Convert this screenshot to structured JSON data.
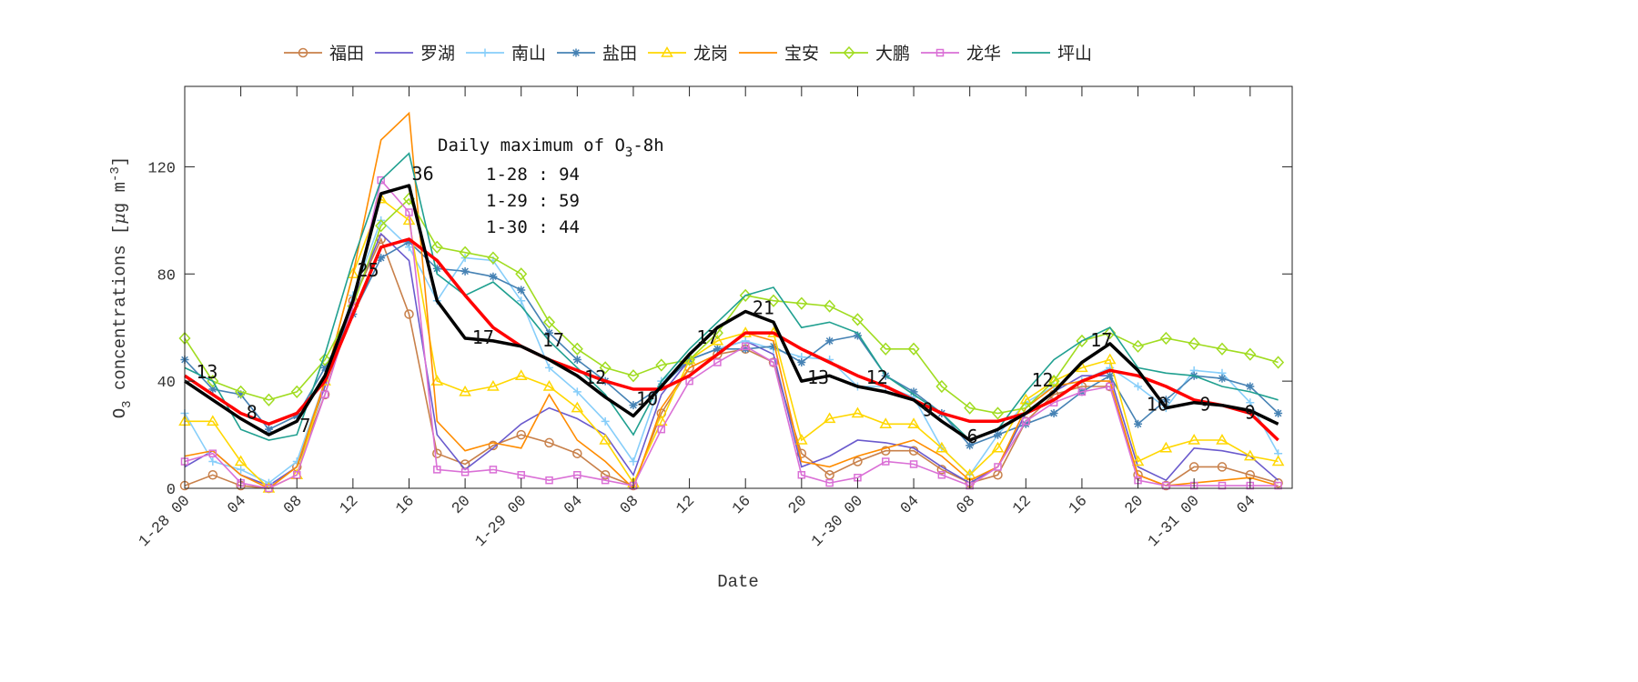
{
  "chart_data": {
    "type": "line",
    "xlabel": "Date",
    "ylabel": "O3 concentrations [μg m-3]",
    "ylabel_parts": {
      "main": "O",
      "sub": "3",
      "rest": " concentrations [",
      "mu": "μ",
      "unit": "g m",
      "sup": "-3",
      "close": "]"
    },
    "ylim": [
      0,
      150
    ],
    "xlim_hours": [
      0,
      79
    ],
    "yticks": [
      0,
      40,
      80,
      120
    ],
    "xticks": [
      {
        "h": 0,
        "label": "1-28 00"
      },
      {
        "h": 4,
        "label": "04"
      },
      {
        "h": 8,
        "label": "08"
      },
      {
        "h": 12,
        "label": "12"
      },
      {
        "h": 16,
        "label": "16"
      },
      {
        "h": 20,
        "label": "20"
      },
      {
        "h": 24,
        "label": "1-29 00"
      },
      {
        "h": 28,
        "label": "04"
      },
      {
        "h": 32,
        "label": "08"
      },
      {
        "h": 36,
        "label": "12"
      },
      {
        "h": 40,
        "label": "16"
      },
      {
        "h": 44,
        "label": "20"
      },
      {
        "h": 48,
        "label": "1-30 00"
      },
      {
        "h": 52,
        "label": "04"
      },
      {
        "h": 56,
        "label": "08"
      },
      {
        "h": 60,
        "label": "12"
      },
      {
        "h": 64,
        "label": "16"
      },
      {
        "h": 68,
        "label": "20"
      },
      {
        "h": 72,
        "label": "1-31 00"
      },
      {
        "h": 76,
        "label": "04"
      }
    ],
    "x_hours": [
      0,
      2,
      4,
      6,
      8,
      10,
      12,
      14,
      16,
      18,
      20,
      22,
      24,
      26,
      28,
      30,
      32,
      34,
      36,
      38,
      40,
      42,
      44,
      46,
      48,
      50,
      52,
      54,
      56,
      58,
      60,
      62,
      64,
      66,
      68,
      70,
      72,
      74,
      76,
      78
    ],
    "legend_position": "top-center",
    "grid": false,
    "series": [
      {
        "name": "福田",
        "color": "#c8804a",
        "marker": "circle",
        "values": [
          1,
          5,
          1,
          0,
          8,
          35,
          70,
          93,
          65,
          13,
          9,
          16,
          20,
          17,
          13,
          5,
          1,
          28,
          45,
          50,
          52,
          47,
          13,
          5,
          10,
          14,
          14,
          7,
          2,
          5,
          25,
          35,
          38,
          38,
          5,
          1,
          8,
          8,
          5,
          2
        ]
      },
      {
        "name": "罗湖",
        "color": "#6a5acd",
        "marker": "none",
        "values": [
          8,
          14,
          5,
          1,
          8,
          38,
          70,
          95,
          85,
          20,
          7,
          15,
          24,
          30,
          26,
          20,
          5,
          35,
          48,
          52,
          55,
          50,
          8,
          12,
          18,
          17,
          15,
          8,
          2,
          8,
          28,
          36,
          42,
          42,
          8,
          3,
          15,
          14,
          12,
          3
        ]
      },
      {
        "name": "南山",
        "color": "#87cefa",
        "marker": "plus",
        "values": [
          28,
          10,
          7,
          2,
          10,
          40,
          72,
          100,
          90,
          70,
          86,
          85,
          70,
          45,
          36,
          25,
          10,
          40,
          48,
          52,
          55,
          52,
          49,
          48,
          38,
          38,
          34,
          15,
          5,
          20,
          32,
          38,
          40,
          45,
          38,
          30,
          44,
          43,
          32,
          13
        ]
      },
      {
        "name": "盐田",
        "color": "#4682b4",
        "marker": "asterisk",
        "values": [
          48,
          37,
          35,
          22,
          27,
          45,
          65,
          86,
          92,
          82,
          81,
          79,
          74,
          58,
          48,
          40,
          31,
          38,
          48,
          52,
          52,
          53,
          47,
          55,
          57,
          42,
          36,
          28,
          16,
          20,
          24,
          28,
          36,
          42,
          24,
          33,
          42,
          41,
          38,
          28
        ]
      },
      {
        "name": "龙岗",
        "color": "#ffd700",
        "marker": "triangle",
        "values": [
          25,
          25,
          10,
          0,
          5,
          40,
          80,
          108,
          100,
          40,
          36,
          38,
          42,
          38,
          30,
          18,
          2,
          25,
          48,
          55,
          58,
          58,
          18,
          26,
          28,
          24,
          24,
          15,
          5,
          15,
          33,
          40,
          45,
          48,
          10,
          15,
          18,
          18,
          12,
          10
        ]
      },
      {
        "name": "宝安",
        "color": "#ff8c00",
        "marker": "none",
        "values": [
          12,
          14,
          5,
          0,
          8,
          40,
          80,
          130,
          140,
          25,
          14,
          17,
          15,
          35,
          18,
          10,
          0,
          30,
          45,
          50,
          58,
          55,
          10,
          8,
          12,
          15,
          18,
          12,
          3,
          8,
          30,
          38,
          40,
          40,
          5,
          1,
          2,
          3,
          4,
          1
        ]
      },
      {
        "name": "大鹏",
        "color": "#a0dc20",
        "marker": "diamond",
        "values": [
          56,
          40,
          36,
          33,
          36,
          48,
          68,
          98,
          108,
          90,
          88,
          86,
          80,
          62,
          52,
          45,
          42,
          46,
          48,
          58,
          72,
          70,
          69,
          68,
          63,
          52,
          52,
          38,
          30,
          28,
          30,
          40,
          55,
          58,
          53,
          56,
          54,
          52,
          50,
          47
        ]
      },
      {
        "name": "龙华",
        "color": "#da70d6",
        "marker": "square",
        "values": [
          10,
          13,
          2,
          0,
          5,
          35,
          68,
          115,
          103,
          7,
          6,
          7,
          5,
          3,
          5,
          3,
          1,
          22,
          40,
          47,
          53,
          47,
          5,
          2,
          4,
          10,
          9,
          5,
          1,
          8,
          25,
          32,
          36,
          38,
          3,
          1,
          1,
          1,
          1,
          1
        ]
      },
      {
        "name": "坪山",
        "color": "#20a090",
        "marker": "none",
        "values": [
          45,
          40,
          22,
          18,
          20,
          50,
          85,
          115,
          125,
          80,
          72,
          77,
          68,
          55,
          45,
          35,
          20,
          40,
          52,
          62,
          72,
          75,
          60,
          62,
          58,
          42,
          35,
          28,
          18,
          22,
          36,
          48,
          55,
          60,
          45,
          43,
          42,
          38,
          36,
          33
        ]
      }
    ],
    "mean_line": {
      "color": "#000000",
      "values": [
        40,
        33,
        26,
        20,
        25,
        42,
        70,
        110,
        113,
        70,
        56,
        55,
        53,
        48,
        42,
        34,
        27,
        38,
        50,
        60,
        66,
        62,
        40,
        42,
        38,
        36,
        33,
        25,
        18,
        22,
        28,
        36,
        47,
        54,
        44,
        30,
        32,
        31,
        29,
        24
      ]
    },
    "smooth_line": {
      "color": "#ff0000",
      "values": [
        42,
        35,
        28,
        24,
        28,
        40,
        65,
        90,
        93,
        85,
        72,
        60,
        53,
        48,
        44,
        40,
        37,
        37,
        42,
        50,
        58,
        58,
        52,
        47,
        42,
        38,
        33,
        28,
        25,
        25,
        28,
        33,
        40,
        44,
        42,
        38,
        33,
        31,
        28,
        18
      ]
    },
    "point_labels": [
      {
        "h": 0.8,
        "v": 41,
        "text": "13"
      },
      {
        "h": 4.4,
        "v": 26,
        "text": "8"
      },
      {
        "h": 8.2,
        "v": 21,
        "text": "7"
      },
      {
        "h": 12.3,
        "v": 79,
        "text": "25"
      },
      {
        "h": 16.2,
        "v": 115,
        "text": "36"
      },
      {
        "h": 20.5,
        "v": 54,
        "text": "17"
      },
      {
        "h": 25.5,
        "v": 53,
        "text": "17"
      },
      {
        "h": 28.5,
        "v": 39,
        "text": "12"
      },
      {
        "h": 32.2,
        "v": 31,
        "text": "10"
      },
      {
        "h": 36.5,
        "v": 54,
        "text": "17"
      },
      {
        "h": 40.5,
        "v": 65,
        "text": "21"
      },
      {
        "h": 44.4,
        "v": 39,
        "text": "13"
      },
      {
        "h": 48.6,
        "v": 39,
        "text": "12"
      },
      {
        "h": 52.6,
        "v": 27,
        "text": "9"
      },
      {
        "h": 55.8,
        "v": 17,
        "text": "6"
      },
      {
        "h": 60.4,
        "v": 38,
        "text": "12"
      },
      {
        "h": 64.6,
        "v": 53,
        "text": "17"
      },
      {
        "h": 68.6,
        "v": 29,
        "text": "10"
      },
      {
        "h": 72.4,
        "v": 29,
        "text": "9"
      },
      {
        "h": 75.6,
        "v": 26,
        "text": "9"
      }
    ],
    "annotation": {
      "title_main": "Daily maximum of O",
      "title_sub": "3",
      "title_rest": "-8h",
      "lines": [
        "1-28 : 94",
        "1-29 : 59",
        "1-30 : 44"
      ]
    }
  }
}
